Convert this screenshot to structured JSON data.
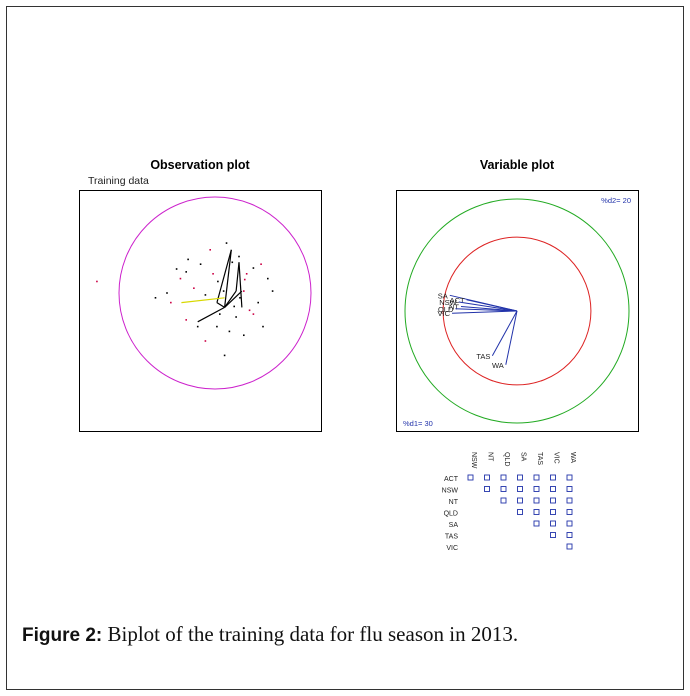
{
  "figure": {
    "label": "Figure 2:",
    "caption": "Biplot of the training data for flu season in 2013."
  },
  "chart_data": [
    {
      "type": "scatter",
      "title": "Observation plot",
      "subtitle": "Training data",
      "circle_color": "#cc22cc",
      "point_color_primary": "#000000",
      "point_color_secondary": "#cc0044",
      "points": [
        [
          -0.05,
          0.45
        ],
        [
          0.12,
          0.52
        ],
        [
          0.25,
          0.38
        ],
        [
          0.33,
          0.2
        ],
        [
          0.4,
          0.26
        ],
        [
          -0.3,
          0.22
        ],
        [
          -0.36,
          0.15
        ],
        [
          0.03,
          0.12
        ],
        [
          0.09,
          0.02
        ],
        [
          0.3,
          0.02
        ],
        [
          0.45,
          -0.1
        ],
        [
          -0.15,
          0.3
        ],
        [
          -0.22,
          0.05
        ],
        [
          -0.1,
          -0.02
        ],
        [
          0.18,
          0.32
        ],
        [
          0.36,
          -0.18
        ],
        [
          -0.5,
          0.0
        ],
        [
          -0.4,
          0.25
        ],
        [
          -0.46,
          -0.1
        ],
        [
          0.6,
          0.02
        ],
        [
          0.5,
          -0.35
        ],
        [
          -0.3,
          -0.28
        ],
        [
          0.02,
          -0.35
        ],
        [
          0.22,
          -0.25
        ],
        [
          -0.1,
          -0.5
        ],
        [
          0.1,
          -0.65
        ],
        [
          0.3,
          -0.44
        ],
        [
          0.48,
          0.3
        ],
        [
          0.55,
          0.15
        ],
        [
          -0.62,
          -0.05
        ],
        [
          -1.23,
          0.12
        ],
        [
          0.15,
          -0.4
        ],
        [
          0.2,
          -0.14
        ],
        [
          -0.02,
          0.2
        ],
        [
          0.26,
          -0.05
        ],
        [
          -0.18,
          -0.35
        ],
        [
          0.4,
          -0.22
        ],
        [
          0.05,
          -0.22
        ],
        [
          -0.28,
          0.35
        ],
        [
          0.31,
          0.14
        ]
      ],
      "segments": [
        {
          "color": "#000000",
          "from": [
            0.1,
            -0.15
          ],
          "to": [
            0.17,
            0.45
          ]
        },
        {
          "color": "#000000",
          "from": [
            0.17,
            0.45
          ],
          "to": [
            0.02,
            -0.1
          ]
        },
        {
          "color": "#000000",
          "from": [
            0.02,
            -0.1
          ],
          "to": [
            0.1,
            -0.15
          ]
        },
        {
          "color": "#000000",
          "from": [
            0.25,
            0.32
          ],
          "to": [
            0.28,
            -0.15
          ]
        },
        {
          "color": "#000000",
          "from": [
            0.25,
            0.32
          ],
          "to": [
            0.22,
            0.02
          ]
        },
        {
          "color": "#000000",
          "from": [
            0.22,
            0.02
          ],
          "to": [
            0.1,
            -0.15
          ]
        },
        {
          "color": "#000000",
          "from": [
            0.1,
            -0.15
          ],
          "to": [
            -0.18,
            -0.3
          ]
        },
        {
          "color": "#000000",
          "from": [
            0.1,
            -0.15
          ],
          "to": [
            0.28,
            0.02
          ]
        },
        {
          "color": "#d8d800",
          "from": [
            0.1,
            -0.05
          ],
          "to": [
            -0.35,
            -0.1
          ]
        }
      ],
      "grid": false
    },
    {
      "type": "biplot-variables",
      "title": "Variable plot",
      "axis_labels": [
        "%d1= 30",
        "%d2= 20"
      ],
      "circle_colors": [
        "#22aa22",
        "#dd2222"
      ],
      "arrow_color": "#2233aa",
      "variables": [
        {
          "name": "SA",
          "x": -0.6,
          "y": 0.14
        },
        {
          "name": "ACT",
          "x": -0.45,
          "y": 0.1
        },
        {
          "name": "NSW",
          "x": -0.52,
          "y": 0.08
        },
        {
          "name": "NT",
          "x": -0.5,
          "y": 0.04
        },
        {
          "name": "QLD",
          "x": -0.55,
          "y": 0.02
        },
        {
          "name": "VIC",
          "x": -0.58,
          "y": -0.02
        },
        {
          "name": "TAS",
          "x": -0.22,
          "y": -0.4
        },
        {
          "name": "WA",
          "x": -0.1,
          "y": -0.48
        }
      ],
      "grid": false
    },
    {
      "type": "table",
      "title": "",
      "columns": [
        "NSW",
        "NT",
        "QLD",
        "SA",
        "TAS",
        "VIC",
        "WA"
      ],
      "rows": [
        "ACT",
        "NSW",
        "NT",
        "QLD",
        "SA",
        "TAS",
        "VIC"
      ],
      "marker_color": "#2233aa",
      "cells": [
        [
          1,
          1,
          1,
          1,
          1,
          1,
          1
        ],
        [
          0,
          1,
          1,
          1,
          1,
          1,
          1
        ],
        [
          0,
          0,
          1,
          1,
          1,
          1,
          1
        ],
        [
          0,
          0,
          0,
          1,
          1,
          1,
          1
        ],
        [
          0,
          0,
          0,
          0,
          1,
          1,
          1
        ],
        [
          0,
          0,
          0,
          0,
          0,
          1,
          1
        ],
        [
          0,
          0,
          0,
          0,
          0,
          0,
          1
        ]
      ]
    }
  ]
}
